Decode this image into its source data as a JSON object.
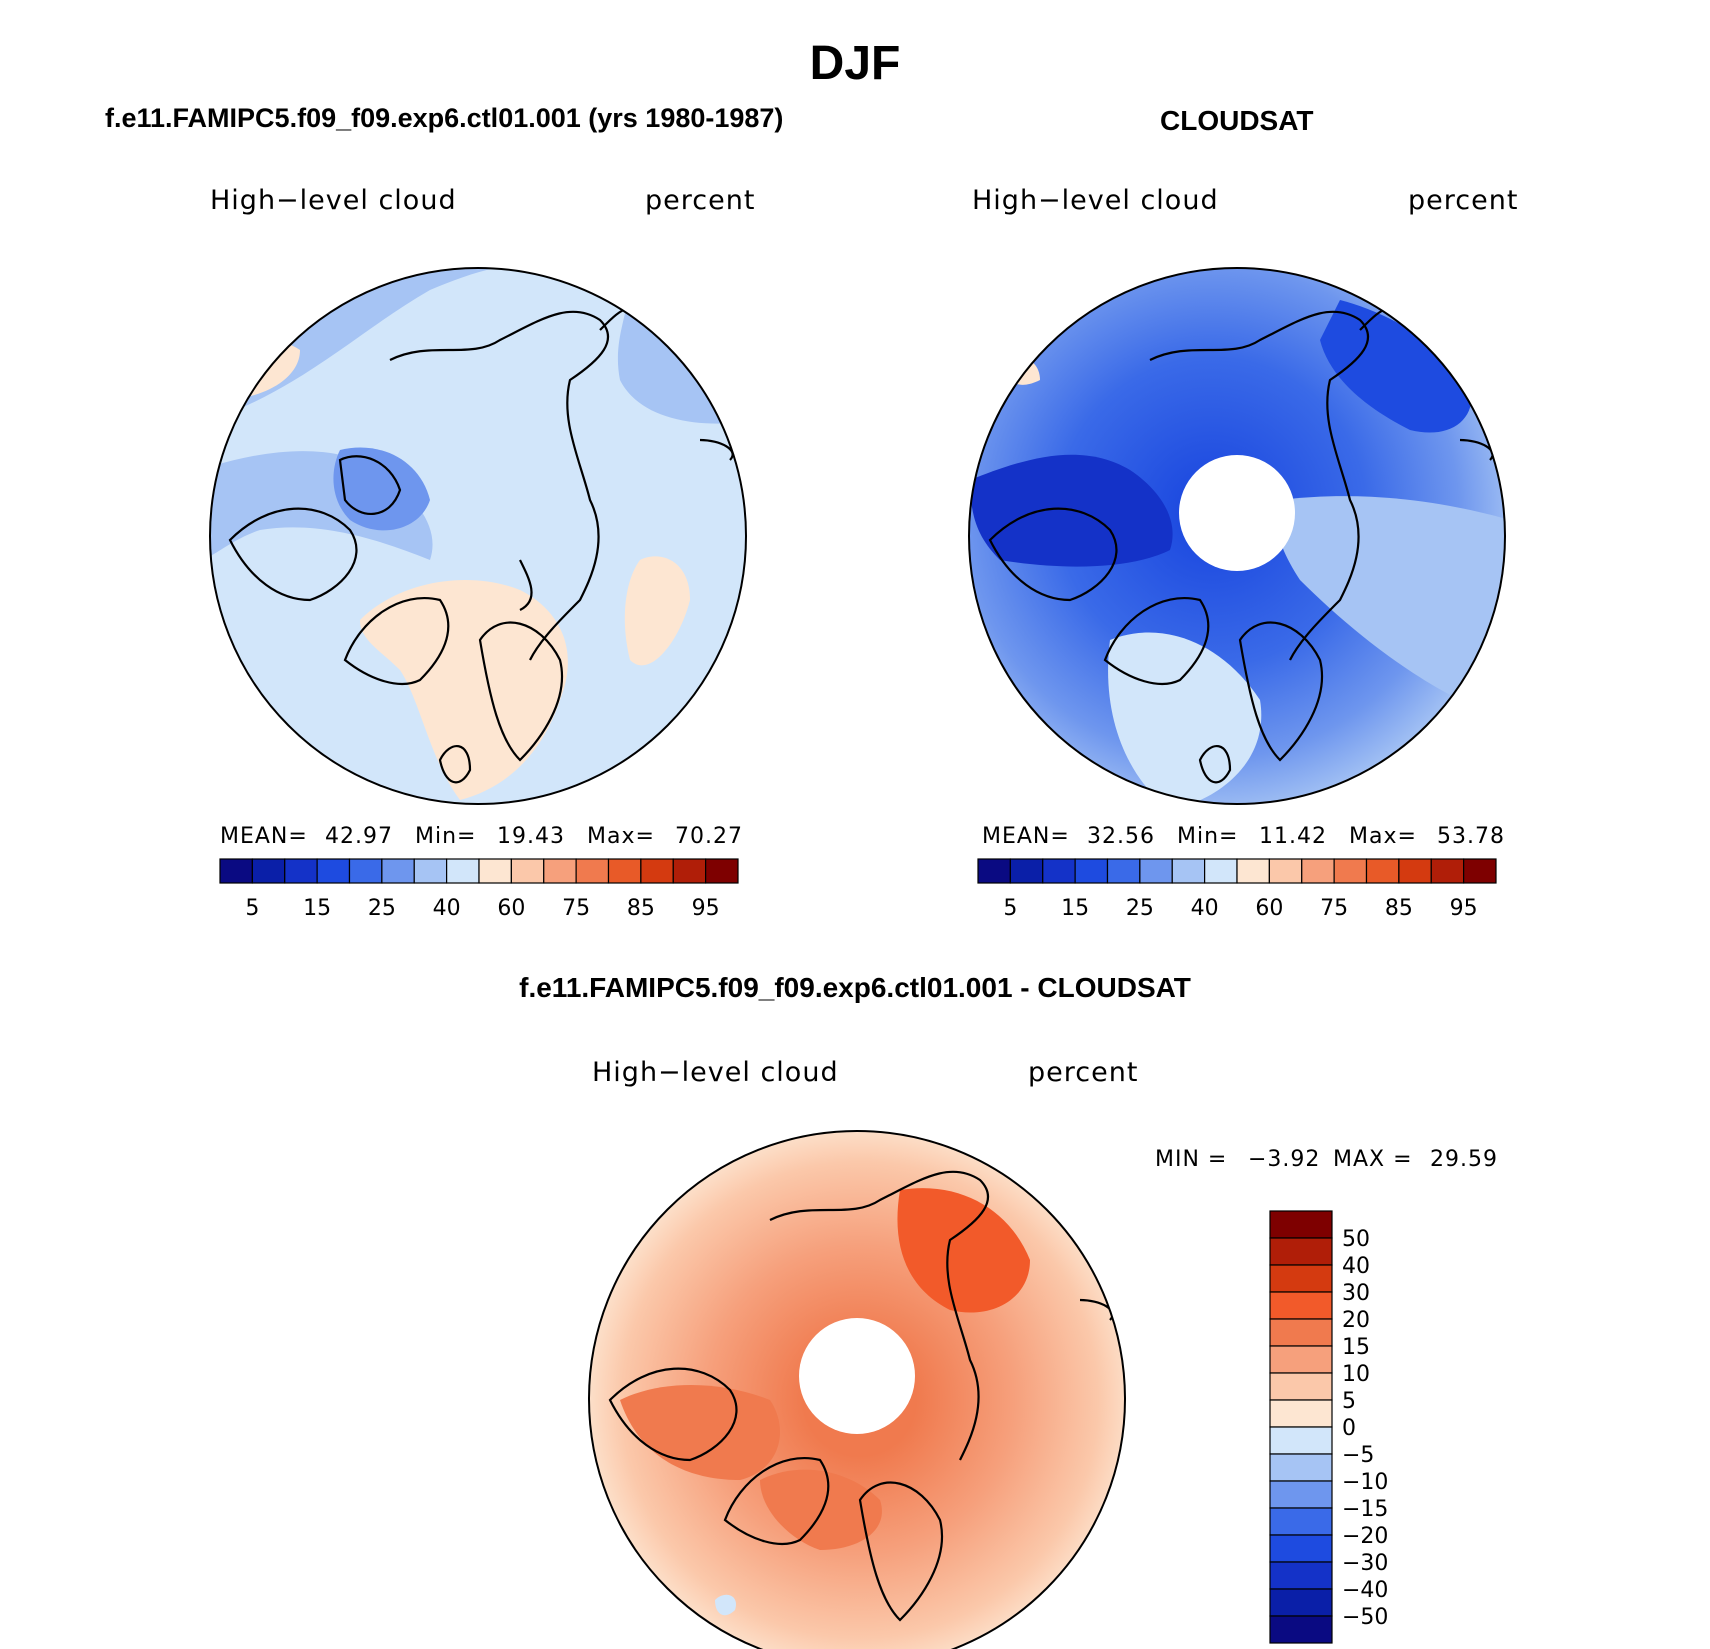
{
  "title": "DJF",
  "panels": [
    {
      "id": "model",
      "heading": "f.e11.FAMIPC5.f09_f09.exp6.ctl01.001 (yrs 1980-1987)",
      "variable": "High−level cloud",
      "units": "percent",
      "stats": {
        "mean_label": "MEAN=",
        "mean": "42.97",
        "min_label": "Min=",
        "min": "19.43",
        "max_label": "Max=",
        "max": "70.27"
      }
    },
    {
      "id": "obs",
      "heading": "CLOUDSAT",
      "variable": "High−level cloud",
      "units": "percent",
      "stats": {
        "mean_label": "MEAN=",
        "mean": "32.56",
        "min_label": "Min=",
        "min": "11.42",
        "max_label": "Max=",
        "max": "53.78"
      }
    },
    {
      "id": "diff",
      "heading": "f.e11.FAMIPC5.f09_f09.exp6.ctl01.001 - CLOUDSAT",
      "variable": "High−level cloud",
      "units": "percent",
      "stats": {
        "min_label": "MIN =",
        "min": "−3.92",
        "max_label": "MAX =",
        "max": "29.59"
      }
    }
  ],
  "colorbar_abs": {
    "colors": [
      "#0a0a82",
      "#0a1fa8",
      "#1432c8",
      "#1e4be0",
      "#3a6ae8",
      "#6e96ee",
      "#a6c4f4",
      "#d2e6fa",
      "#fde6d2",
      "#fbc8aa",
      "#f6a07c",
      "#f07a4e",
      "#e85a28",
      "#d43a10",
      "#b01e08",
      "#7e0000"
    ],
    "labels": [
      "5",
      "15",
      "25",
      "40",
      "60",
      "75",
      "85",
      "95"
    ]
  },
  "colorbar_diff": {
    "colors": [
      "#0a0a82",
      "#0a1fa8",
      "#1432c8",
      "#1e4be0",
      "#3a6ae8",
      "#6e96ee",
      "#a6c4f4",
      "#d2e6fa",
      "#fde6d2",
      "#fbc8aa",
      "#f6a07c",
      "#f07a4e",
      "#f25a2a",
      "#d43a10",
      "#b01e08",
      "#7e0000"
    ],
    "labels": [
      "50",
      "40",
      "30",
      "20",
      "15",
      "10",
      "5",
      "0",
      "−5",
      "−10",
      "−15",
      "−20",
      "−30",
      "−40",
      "−50"
    ]
  }
}
